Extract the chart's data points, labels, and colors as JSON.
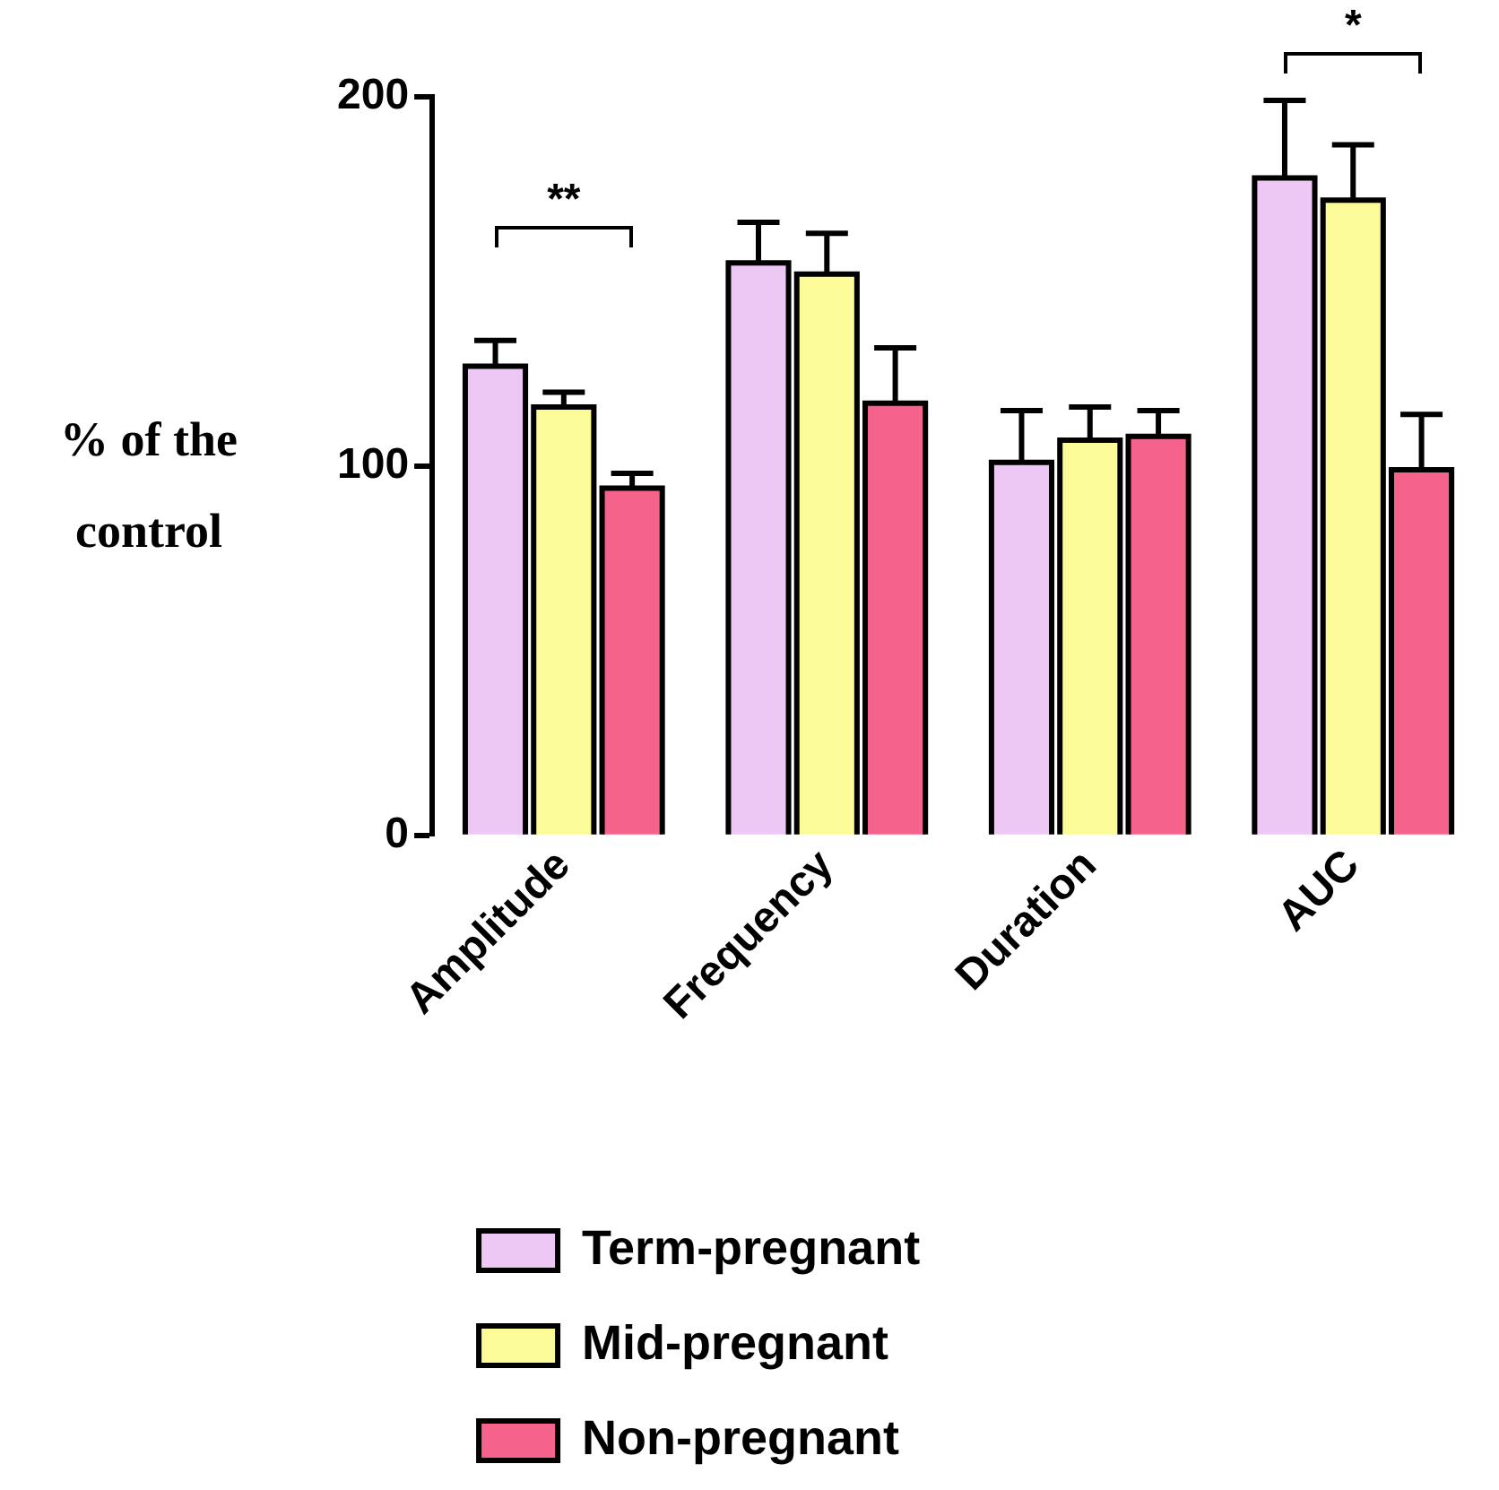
{
  "chart_data": {
    "type": "bar",
    "ylabel": "% of the control",
    "categories": [
      "Amplitude",
      "Frequency",
      "Duration",
      "AUC"
    ],
    "ylim": [
      0,
      200
    ],
    "yticks": [
      0,
      100,
      200
    ],
    "grid": false,
    "legend": "bottom",
    "series": [
      {
        "name": "Term-pregnant",
        "color": "#eec8f4",
        "values": [
          127,
          155,
          101,
          178
        ],
        "errors": [
          7,
          11,
          14,
          21
        ]
      },
      {
        "name": "Mid-pregnant",
        "color": "#fbfb98",
        "values": [
          116,
          152,
          107,
          172
        ],
        "errors": [
          4,
          11,
          9,
          15
        ]
      },
      {
        "name": "Non-pregnant",
        "color": "#f5638c",
        "values": [
          94,
          117,
          108,
          99
        ],
        "errors": [
          4,
          15,
          7,
          15
        ]
      }
    ],
    "annotations": [
      "**",
      "*"
    ]
  }
}
